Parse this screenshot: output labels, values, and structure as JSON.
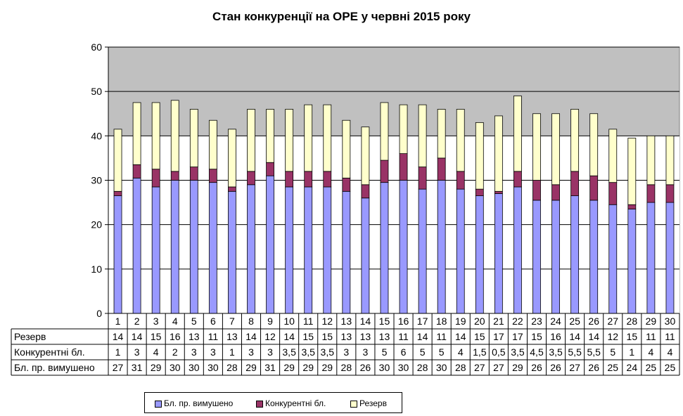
{
  "chart_data": {
    "type": "bar",
    "stacked": true,
    "title": "Стан конкуренції на ОРЕ  у червні 2015 року",
    "xlabel": "",
    "ylabel": "",
    "ylim": [
      0,
      60
    ],
    "yticks": [
      "0",
      "10",
      "20",
      "30",
      "40",
      "50",
      "60"
    ],
    "categories": [
      "1",
      "2",
      "3",
      "4",
      "5",
      "6",
      "7",
      "8",
      "9",
      "10",
      "11",
      "12",
      "13",
      "14",
      "15",
      "16",
      "17",
      "18",
      "19",
      "20",
      "21",
      "22",
      "23",
      "24",
      "25",
      "26",
      "27",
      "28",
      "29",
      "30"
    ],
    "series": [
      {
        "name": "Бл. пр. вимушено",
        "color": "#9999ff",
        "values": [
          26.5,
          30.5,
          28.5,
          30,
          30,
          29.5,
          27.5,
          29,
          31,
          28.5,
          28.5,
          28.5,
          27.5,
          26,
          29.5,
          30,
          28,
          30,
          28,
          26.5,
          27,
          28.5,
          25.5,
          25.5,
          26.5,
          25.5,
          24.5,
          23.5,
          25,
          25
        ],
        "labels": [
          "27",
          "31",
          "29",
          "30",
          "30",
          "30",
          "28",
          "29",
          "31",
          "29",
          "29",
          "29",
          "28",
          "26",
          "30",
          "30",
          "28",
          "30",
          "28",
          "27",
          "27",
          "29",
          "26",
          "26",
          "27",
          "26",
          "25",
          "24",
          "25",
          "25"
        ]
      },
      {
        "name": "Конкурентні бл.",
        "color": "#993366",
        "values": [
          1,
          3,
          4,
          2,
          3,
          3,
          1,
          3,
          3,
          3.5,
          3.5,
          3.5,
          3,
          3,
          5,
          6,
          5,
          5,
          4,
          1.5,
          0.5,
          3.5,
          4.5,
          3.5,
          5.5,
          5.5,
          5,
          1,
          4,
          4
        ],
        "labels": [
          "1",
          "3",
          "4",
          "2",
          "3",
          "3",
          "1",
          "3",
          "3",
          "3,5",
          "3,5",
          "3,5",
          "3",
          "3",
          "5",
          "6",
          "5",
          "5",
          "4",
          "1,5",
          "0,5",
          "3,5",
          "4,5",
          "3,5",
          "5,5",
          "5,5",
          "5",
          "1",
          "4",
          "4"
        ]
      },
      {
        "name": "Резерв",
        "color": "#ffffcc",
        "values": [
          14,
          14,
          15,
          16,
          13,
          11,
          13,
          14,
          12,
          14,
          15,
          15,
          13,
          13,
          13,
          11,
          14,
          11,
          14,
          15,
          17,
          17,
          15,
          16,
          14,
          14,
          12,
          15,
          11,
          11
        ],
        "labels": [
          "14",
          "14",
          "15",
          "16",
          "13",
          "11",
          "13",
          "14",
          "12",
          "14",
          "15",
          "15",
          "13",
          "13",
          "13",
          "11",
          "14",
          "11",
          "14",
          "15",
          "17",
          "17",
          "15",
          "16",
          "14",
          "14",
          "12",
          "15",
          "11",
          "11"
        ]
      }
    ],
    "table_rows": [
      "Резерв",
      "Конкурентні бл.",
      "Бл. пр. вимушено"
    ],
    "background": {
      "plot_fill": "#c0c0c0",
      "plot_lower_fill": "#ffffff",
      "plot_lower_top": 40
    },
    "grid": true,
    "legend_position": "bottom"
  }
}
